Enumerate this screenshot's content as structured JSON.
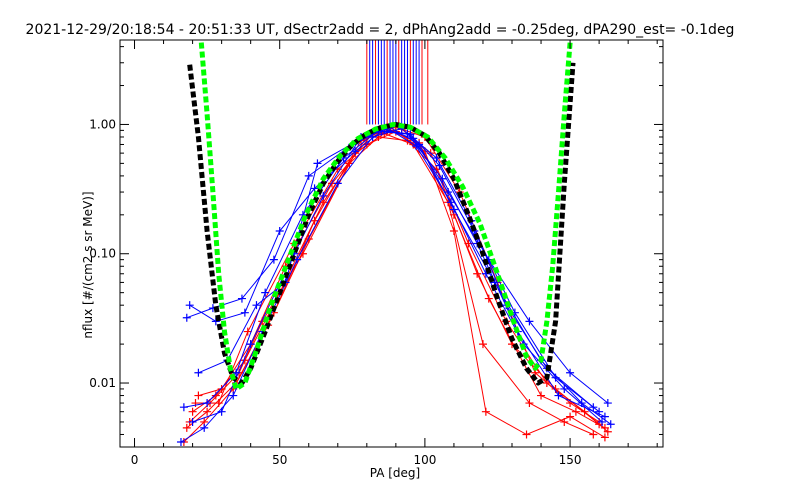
{
  "chart_data": {
    "type": "line",
    "title": "2021-12-29/20:18:54 - 20:51:33 UT, dSectr2add = 2, dPhAng2add = -0.25deg, dPA290_est=  -0.1deg",
    "xlabel": "PA [deg]",
    "ylabel": "nflux [#/(cm2 s sr MeV)]",
    "xlim": [
      -5,
      182
    ],
    "ylim": [
      0.0032,
      4.5
    ],
    "yscale": "log",
    "grid": false,
    "x_ticks": [
      0,
      50,
      100,
      150
    ],
    "x_tick_labels": [
      "0",
      "50",
      "100",
      "150"
    ],
    "y_ticks": [
      0.01,
      0.1,
      1.0
    ],
    "y_tick_labels": [
      "0.01",
      "0.10",
      "1.00"
    ],
    "colors": {
      "red_series": "#ff0000",
      "blue_series": "#0000ff",
      "black_fit": "#000000",
      "green_fit": "#00ff00"
    },
    "red_series": [
      {
        "x": [
          18,
          25,
          35,
          48,
          62,
          78,
          88,
          98,
          110,
          122,
          140,
          152,
          162
        ],
        "y": [
          0.0045,
          0.006,
          0.01,
          0.035,
          0.18,
          0.75,
          0.9,
          0.72,
          0.2,
          0.045,
          0.008,
          0.006,
          0.0045
        ]
      },
      {
        "x": [
          20,
          28,
          38,
          50,
          65,
          80,
          90,
          100,
          112,
          125,
          138,
          150,
          160
        ],
        "y": [
          0.006,
          0.008,
          0.015,
          0.05,
          0.25,
          0.8,
          0.95,
          0.8,
          0.3,
          0.06,
          0.012,
          0.007,
          0.005
        ]
      },
      {
        "x": [
          17,
          24,
          34,
          46,
          60,
          76,
          86,
          96,
          108,
          120,
          136,
          148,
          158
        ],
        "y": [
          0.0035,
          0.005,
          0.009,
          0.028,
          0.13,
          0.6,
          0.85,
          0.7,
          0.25,
          0.02,
          0.007,
          0.005,
          0.004
        ]
      },
      {
        "x": [
          22,
          30,
          40,
          52,
          68,
          82,
          92,
          102,
          115,
          128,
          142,
          155,
          163
        ],
        "y": [
          0.008,
          0.009,
          0.02,
          0.08,
          0.35,
          0.85,
          0.92,
          0.6,
          0.12,
          0.03,
          0.01,
          0.006,
          0.0042
        ]
      },
      {
        "x": [
          19,
          26,
          36,
          44,
          58,
          74,
          84,
          94,
          104,
          118,
          130,
          145,
          160
        ],
        "y": [
          0.005,
          0.007,
          0.012,
          0.03,
          0.1,
          0.5,
          0.8,
          0.75,
          0.45,
          0.07,
          0.02,
          0.009,
          0.0048
        ]
      },
      {
        "x": [
          21,
          29,
          39,
          55,
          70,
          80,
          90,
          100,
          110,
          121,
          135,
          150,
          162
        ],
        "y": [
          0.007,
          0.007,
          0.025,
          0.12,
          0.45,
          0.7,
          0.88,
          0.62,
          0.15,
          0.006,
          0.004,
          0.0055,
          0.0038
        ]
      }
    ],
    "blue_series": [
      {
        "x": [
          17,
          25,
          35,
          45,
          58,
          72,
          84,
          94,
          106,
          118,
          132,
          146,
          162
        ],
        "y": [
          0.0065,
          0.007,
          0.012,
          0.05,
          0.2,
          0.55,
          0.9,
          0.85,
          0.38,
          0.12,
          0.025,
          0.008,
          0.0055
        ]
      },
      {
        "x": [
          18,
          27,
          37,
          48,
          60,
          75,
          86,
          96,
          108,
          122,
          136,
          150,
          163
        ],
        "y": [
          0.032,
          0.038,
          0.045,
          0.09,
          0.4,
          0.7,
          0.92,
          0.78,
          0.3,
          0.09,
          0.03,
          0.012,
          0.007
        ]
      },
      {
        "x": [
          20,
          30,
          40,
          55,
          65,
          78,
          88,
          98,
          110,
          124,
          140,
          154,
          164
        ],
        "y": [
          0.005,
          0.006,
          0.02,
          0.1,
          0.28,
          0.8,
          0.95,
          0.7,
          0.22,
          0.06,
          0.015,
          0.007,
          0.0048
        ]
      },
      {
        "x": [
          19,
          28,
          38,
          50,
          62,
          76,
          85,
          95,
          105,
          117,
          131,
          145,
          160
        ],
        "y": [
          0.04,
          0.03,
          0.035,
          0.15,
          0.32,
          0.62,
          0.88,
          0.84,
          0.48,
          0.15,
          0.035,
          0.011,
          0.006
        ]
      },
      {
        "x": [
          16,
          24,
          34,
          44,
          56,
          70,
          82,
          92,
          104,
          116,
          128,
          142,
          158
        ],
        "y": [
          0.0035,
          0.0045,
          0.008,
          0.025,
          0.09,
          0.35,
          0.8,
          0.93,
          0.55,
          0.18,
          0.04,
          0.013,
          0.0065
        ]
      },
      {
        "x": [
          22,
          32,
          42,
          52,
          63,
          77,
          87,
          97,
          109,
          121,
          134,
          148,
          161
        ],
        "y": [
          0.012,
          0.015,
          0.04,
          0.06,
          0.5,
          0.75,
          0.94,
          0.68,
          0.25,
          0.07,
          0.02,
          0.009,
          0.005
        ]
      }
    ],
    "fit_black": {
      "x": [
        19,
        22,
        25,
        28,
        31,
        34,
        37,
        40,
        45,
        50,
        55,
        60,
        65,
        70,
        75,
        80,
        85,
        90,
        95,
        100,
        105,
        110,
        115,
        120,
        125,
        130,
        135,
        139,
        142,
        145,
        148,
        151
      ],
      "y": [
        2.9,
        0.8,
        0.15,
        0.04,
        0.017,
        0.011,
        0.01,
        0.013,
        0.025,
        0.05,
        0.1,
        0.2,
        0.35,
        0.52,
        0.7,
        0.85,
        0.95,
        1.0,
        0.95,
        0.82,
        0.6,
        0.38,
        0.2,
        0.1,
        0.045,
        0.022,
        0.013,
        0.01,
        0.011,
        0.03,
        0.35,
        3.0
      ]
    },
    "fit_green": {
      "x": [
        23,
        25,
        27,
        29,
        31,
        33,
        35,
        38,
        42,
        47,
        53,
        59,
        65,
        71,
        77,
        83,
        89,
        95,
        101,
        107,
        113,
        119,
        125,
        131,
        135,
        138,
        140,
        142,
        144,
        146,
        148,
        150
      ],
      "y": [
        4.3,
        1.2,
        0.3,
        0.07,
        0.025,
        0.013,
        0.009,
        0.01,
        0.018,
        0.04,
        0.09,
        0.2,
        0.38,
        0.58,
        0.78,
        0.92,
        1.0,
        0.95,
        0.8,
        0.55,
        0.33,
        0.17,
        0.07,
        0.028,
        0.016,
        0.013,
        0.015,
        0.03,
        0.08,
        0.3,
        1.2,
        4.3
      ]
    },
    "vertical_markers": {
      "red": [
        80,
        83,
        87,
        91,
        95,
        99,
        101
      ],
      "blue": [
        81,
        82,
        84,
        85,
        86,
        88,
        89,
        90,
        92,
        93,
        94,
        96,
        97,
        98
      ],
      "y_range": [
        1.0,
        4.5
      ]
    }
  }
}
